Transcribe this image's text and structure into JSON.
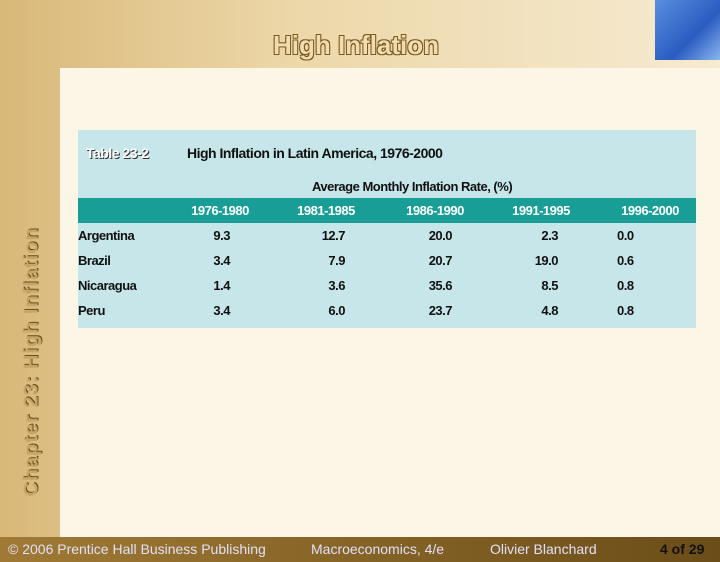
{
  "header": {
    "title": "High Inflation"
  },
  "sidebar": {
    "text": "Chapter 23: High Inflation"
  },
  "table": {
    "label": "Table 23-2",
    "title": "High Inflation in Latin America, 1976-2000",
    "subheader": "Average Monthly Inflation Rate, (%)",
    "columns": [
      "1976-1980",
      "1981-1985",
      "1986-1990",
      "1991-1995",
      "1996-2000"
    ],
    "rows": [
      [
        "Argentina",
        "9.3",
        "12.7",
        "20.0",
        "2.3",
        "0.0"
      ],
      [
        "Brazil",
        "3.4",
        "7.9",
        "20.7",
        "19.0",
        "0.6"
      ],
      [
        "Nicaragua",
        "1.4",
        "3.6",
        "35.6",
        "8.5",
        "0.8"
      ],
      [
        "Peru",
        "3.4",
        "6.0",
        "23.7",
        "4.8",
        "0.8"
      ]
    ]
  },
  "footer": {
    "copyright": "© 2006 Prentice Hall Business Publishing",
    "book": "Macroeconomics, 4/e",
    "author": "Olivier Blanchard",
    "page": "4 of 29"
  }
}
